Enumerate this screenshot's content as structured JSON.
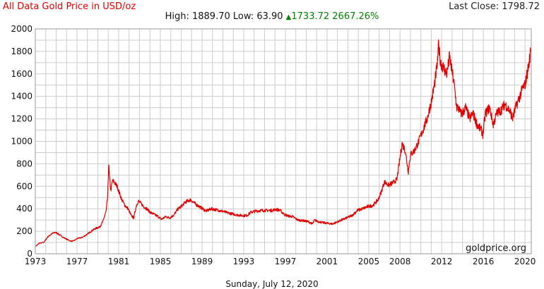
{
  "header": {
    "title": "All Data Gold Price in USD/oz",
    "last_close": "Last Close: 1798.72",
    "high_label": "High:",
    "high_value": "1889.70",
    "low_label": "Low:",
    "low_value": "63.90",
    "change_abs": "1733.72",
    "change_pct": "2667.26%"
  },
  "footer": {
    "date": "Sunday, July 12, 2020"
  },
  "colors": {
    "line": "#e00000",
    "grid": "#cccccc",
    "change": "#008000"
  },
  "chart_data": {
    "type": "line",
    "title": "All Data Gold Price in USD/oz",
    "watermark": "goldprice.org",
    "xlim": [
      1973,
      2020.6
    ],
    "ylim": [
      0,
      2000
    ],
    "yticks": [
      0,
      200,
      400,
      600,
      800,
      1000,
      1200,
      1400,
      1600,
      1800,
      2000
    ],
    "xticks": [
      1973,
      1977,
      1981,
      1985,
      1989,
      1993,
      1997,
      2001,
      2005,
      2008,
      2012,
      2016,
      2020
    ],
    "grid": true,
    "series": [
      {
        "x": [
          1973.0,
          1973.4,
          1973.8,
          1974.2,
          1974.6,
          1974.95,
          1975.3,
          1975.7,
          1976.0,
          1976.4,
          1976.7,
          1977.0,
          1977.5,
          1978.0,
          1978.5,
          1978.9,
          1979.2,
          1979.5,
          1979.8,
          1979.95,
          1980.04,
          1980.12,
          1980.25,
          1980.4,
          1980.55,
          1980.7,
          1980.85,
          1981.0,
          1981.3,
          1981.6,
          1981.9,
          1982.2,
          1982.45,
          1982.7,
          1982.9,
          1983.1,
          1983.4,
          1983.7,
          1984.0,
          1984.4,
          1984.8,
          1985.1,
          1985.5,
          1985.9,
          1986.3,
          1986.7,
          1987.0,
          1987.4,
          1987.9,
          1988.4,
          1988.9,
          1989.4,
          1989.9,
          1990.4,
          1990.9,
          1991.4,
          1991.9,
          1992.4,
          1992.9,
          1993.3,
          1993.7,
          1994.2,
          1994.7,
          1995.2,
          1995.7,
          1996.1,
          1996.5,
          1996.9,
          1997.3,
          1997.7,
          1998.2,
          1998.7,
          1999.2,
          1999.6,
          1999.8,
          2000.2,
          2000.7,
          2001.1,
          2001.5,
          2001.9,
          2002.4,
          2002.9,
          2003.4,
          2003.9,
          2004.4,
          2004.9,
          2005.4,
          2005.9,
          2006.2,
          2006.5,
          2006.9,
          2007.3,
          2007.7,
          2008.0,
          2008.2,
          2008.5,
          2008.8,
          2009.0,
          2009.4,
          2009.8,
          2010.2,
          2010.6,
          2011.0,
          2011.3,
          2011.6,
          2011.7,
          2011.9,
          2012.2,
          2012.5,
          2012.75,
          2012.95,
          2013.2,
          2013.45,
          2013.6,
          2013.8,
          2014.0,
          2014.3,
          2014.7,
          2015.0,
          2015.4,
          2015.8,
          2015.95,
          2016.2,
          2016.6,
          2016.95,
          2017.3,
          2017.7,
          2018.1,
          2018.6,
          2018.8,
          2019.1,
          2019.5,
          2019.8,
          2020.0,
          2020.2,
          2020.4,
          2020.53
        ],
        "y": [
          64,
          95,
          100,
          150,
          180,
          190,
          170,
          145,
          130,
          112,
          115,
          135,
          145,
          175,
          210,
          230,
          240,
          290,
          380,
          520,
          800,
          680,
          560,
          650,
          640,
          620,
          600,
          560,
          480,
          430,
          400,
          340,
          320,
          430,
          470,
          450,
          420,
          400,
          370,
          350,
          330,
          305,
          330,
          320,
          345,
          400,
          420,
          460,
          480,
          440,
          410,
          380,
          400,
          390,
          380,
          365,
          355,
          345,
          340,
          340,
          370,
          380,
          385,
          385,
          385,
          395,
          385,
          350,
          335,
          330,
          300,
          295,
          285,
          265,
          300,
          285,
          275,
          270,
          265,
          280,
          300,
          320,
          340,
          385,
          400,
          420,
          430,
          480,
          550,
          640,
          610,
          630,
          660,
          850,
          980,
          920,
          730,
          880,
          920,
          1000,
          1100,
          1200,
          1350,
          1500,
          1700,
          1860,
          1700,
          1650,
          1600,
          1750,
          1650,
          1500,
          1300,
          1300,
          1250,
          1250,
          1300,
          1200,
          1250,
          1150,
          1100,
          1060,
          1250,
          1300,
          1150,
          1250,
          1280,
          1330,
          1260,
          1200,
          1300,
          1400,
          1480,
          1500,
          1600,
          1700,
          1798.72
        ]
      }
    ]
  }
}
